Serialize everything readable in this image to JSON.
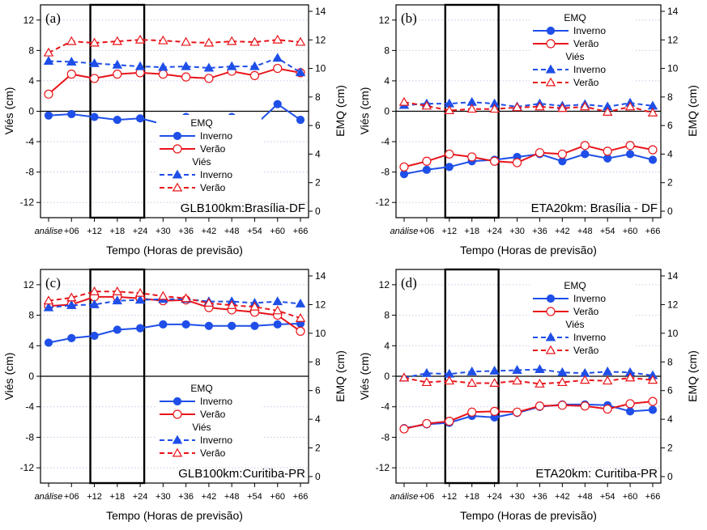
{
  "colors": {
    "inverno": "#1f4fe8",
    "verao": "#e8141a",
    "axis": "#000000",
    "grid": "#c8c8e6"
  },
  "x_tick_labels": [
    "análise",
    "+06",
    "+12",
    "+18",
    "+24",
    "+30",
    "+36",
    "+42",
    "+48",
    "+54",
    "+60",
    "+66"
  ],
  "legend": {
    "emq_header": "EMQ",
    "vies_header": "Viés",
    "inverno": "Inverno",
    "verao": "Verão"
  },
  "chart_data": [
    {
      "type": "line",
      "panel_label": "(a)",
      "title": "GLB100km:Brasília-DF",
      "xlabel": "Tempo (Horas de previsão)",
      "ylabel_left": "Viés (cm)",
      "ylabel_right": "EMQ (cm)",
      "categories": [
        "análise",
        "+06",
        "+12",
        "+18",
        "+24",
        "+30",
        "+36",
        "+42",
        "+48",
        "+54",
        "+60",
        "+66"
      ],
      "ylim_left": [
        -14,
        14
      ],
      "yticks_left": [
        -12,
        -8,
        -4,
        0,
        4,
        8,
        12
      ],
      "ylim_right": [
        0,
        14
      ],
      "yticks_right": [
        0,
        2,
        4,
        6,
        8,
        10,
        12,
        14
      ],
      "highlight_box": {
        "x_from": "+12",
        "x_to": "+24"
      },
      "legend_position": "bottom-right",
      "series": [
        {
          "name": "Inverno",
          "group": "EMQ",
          "axis": "right",
          "style": "solid-circle",
          "color": "#1f4fe8",
          "values": [
            6.7,
            6.8,
            6.6,
            6.4,
            6.5,
            6.1,
            6.6,
            6.0,
            6.6,
            6.0,
            7.5,
            6.4
          ]
        },
        {
          "name": "Verão",
          "group": "EMQ",
          "axis": "right",
          "style": "solid-open-circle",
          "color": "#e8141a",
          "values": [
            8.2,
            9.6,
            9.3,
            9.6,
            9.7,
            9.6,
            9.4,
            9.3,
            9.8,
            9.5,
            10.0,
            9.7
          ]
        },
        {
          "name": "Inverno",
          "group": "Viés",
          "axis": "left",
          "style": "dashed-triangle",
          "color": "#1f4fe8",
          "values": [
            6.6,
            6.5,
            6.3,
            6.1,
            5.9,
            5.8,
            5.9,
            5.7,
            5.9,
            5.9,
            7.0,
            5.1
          ]
        },
        {
          "name": "Verão",
          "group": "Viés",
          "axis": "left",
          "style": "dashed-open-triangle",
          "color": "#e8141a",
          "values": [
            7.7,
            9.2,
            9.0,
            9.2,
            9.4,
            9.3,
            9.1,
            9.0,
            9.2,
            9.1,
            9.4,
            9.1
          ]
        }
      ]
    },
    {
      "type": "line",
      "panel_label": "(b)",
      "title": "ETA20km: Brasília - DF",
      "xlabel": "Tempo (Horas de previsão)",
      "ylabel_left": "Viés (cm)",
      "ylabel_right": "EMQ (cm)",
      "categories": [
        "análise",
        "+06",
        "+12",
        "+18",
        "+24",
        "+30",
        "+36",
        "+42",
        "+48",
        "+54",
        "+60",
        "+66"
      ],
      "ylim_left": [
        -14,
        14
      ],
      "yticks_left": [
        -12,
        -8,
        -4,
        0,
        4,
        8,
        12
      ],
      "ylim_right": [
        0,
        14
      ],
      "yticks_right": [
        0,
        2,
        4,
        6,
        8,
        10,
        12,
        14
      ],
      "highlight_box": {
        "x_from": "+12",
        "x_to": "+24"
      },
      "legend_position": "top-right",
      "series": [
        {
          "name": "Inverno",
          "group": "EMQ",
          "axis": "right",
          "style": "solid-circle",
          "color": "#1f4fe8",
          "values": [
            2.6,
            2.9,
            3.1,
            3.5,
            3.6,
            3.8,
            4.0,
            3.5,
            4.0,
            3.7,
            4.0,
            3.6
          ]
        },
        {
          "name": "Verão",
          "group": "EMQ",
          "axis": "right",
          "style": "solid-open-circle",
          "color": "#e8141a",
          "values": [
            3.1,
            3.5,
            4.0,
            3.8,
            3.5,
            3.4,
            4.1,
            4.0,
            4.6,
            4.2,
            4.6,
            4.3
          ]
        },
        {
          "name": "Inverno",
          "group": "Viés",
          "axis": "left",
          "style": "dashed-triangle",
          "color": "#1f4fe8",
          "values": [
            0.8,
            1.0,
            1.0,
            1.2,
            1.0,
            0.6,
            1.0,
            0.7,
            0.9,
            0.6,
            1.1,
            0.7
          ]
        },
        {
          "name": "Verão",
          "group": "Viés",
          "axis": "left",
          "style": "dashed-open-triangle",
          "color": "#e8141a",
          "values": [
            1.2,
            0.7,
            0.1,
            0.3,
            0.3,
            0.5,
            0.6,
            0.4,
            0.6,
            -0.1,
            0.6,
            -0.2
          ]
        }
      ]
    },
    {
      "type": "line",
      "panel_label": "(c)",
      "title": "GLB100km:Curitiba-PR",
      "xlabel": "Tempo (Horas de previsão)",
      "ylabel_left": "Viés (cm)",
      "ylabel_right": "EMQ (cm)",
      "categories": [
        "análise",
        "+06",
        "+12",
        "+18",
        "+24",
        "+30",
        "+36",
        "+42",
        "+48",
        "+54",
        "+60",
        "+66"
      ],
      "ylim_left": [
        -14,
        14
      ],
      "yticks_left": [
        -12,
        -8,
        -4,
        0,
        4,
        8,
        12
      ],
      "ylim_right": [
        0,
        14
      ],
      "yticks_right": [
        0,
        2,
        4,
        6,
        8,
        10,
        12,
        14
      ],
      "highlight_box": {
        "x_from": "+12",
        "x_to": "+24"
      },
      "legend_position": "bottom-right",
      "series": [
        {
          "name": "Inverno",
          "group": "EMQ",
          "axis": "left",
          "style": "solid-circle",
          "color": "#1f4fe8",
          "values": [
            4.4,
            5.0,
            5.3,
            6.1,
            6.3,
            6.8,
            6.8,
            6.6,
            6.6,
            6.6,
            6.8,
            6.9
          ]
        },
        {
          "name": "Verão",
          "group": "EMQ",
          "axis": "left",
          "style": "solid-open-circle",
          "color": "#e8141a",
          "values": [
            9.2,
            9.4,
            10.4,
            10.4,
            10.2,
            9.9,
            10.0,
            9.0,
            8.7,
            8.4,
            8.0,
            5.9
          ]
        },
        {
          "name": "Inverno",
          "group": "Viés",
          "axis": "left",
          "style": "dashed-triangle",
          "color": "#1f4fe8",
          "values": [
            9.0,
            9.3,
            9.4,
            9.9,
            10.0,
            10.1,
            10.1,
            9.8,
            9.8,
            9.6,
            9.8,
            9.5
          ]
        },
        {
          "name": "Verão",
          "group": "Viés",
          "axis": "left",
          "style": "dashed-open-triangle",
          "color": "#e8141a",
          "values": [
            9.9,
            10.3,
            11.1,
            11.1,
            10.9,
            10.5,
            10.2,
            9.6,
            9.3,
            9.1,
            8.6,
            7.6
          ]
        }
      ]
    },
    {
      "type": "line",
      "panel_label": "(d)",
      "title": "ETA20km: Curitiba-PR",
      "xlabel": "Tempo (Horas de previsão)",
      "ylabel_left": "Viés (cm)",
      "ylabel_right": "EMQ (cm)",
      "categories": [
        "análise",
        "+06",
        "+12",
        "+18",
        "+24",
        "+30",
        "+36",
        "+42",
        "+48",
        "+54",
        "+60",
        "+66"
      ],
      "ylim_left": [
        -14,
        14
      ],
      "yticks_left": [
        -12,
        -8,
        -4,
        0,
        4,
        8,
        12
      ],
      "ylim_right": [
        0,
        14
      ],
      "yticks_right": [
        0,
        2,
        4,
        6,
        8,
        10,
        12,
        14
      ],
      "highlight_box": {
        "x_from": "+12",
        "x_to": "+24"
      },
      "legend_position": "top-right",
      "series": [
        {
          "name": "Inverno",
          "group": "EMQ",
          "axis": "left",
          "style": "solid-circle",
          "color": "#1f4fe8",
          "values": [
            -6.8,
            -6.3,
            -6.1,
            -5.2,
            -5.4,
            -4.8,
            -4.0,
            -3.7,
            -3.7,
            -3.8,
            -4.6,
            -4.4
          ]
        },
        {
          "name": "Verão",
          "group": "EMQ",
          "axis": "left",
          "style": "solid-open-circle",
          "color": "#e8141a",
          "values": [
            -6.9,
            -6.2,
            -5.9,
            -4.7,
            -4.6,
            -4.7,
            -3.9,
            -3.8,
            -3.9,
            -4.3,
            -3.6,
            -3.3
          ]
        },
        {
          "name": "Inverno",
          "group": "Viés",
          "axis": "left",
          "style": "dashed-triangle",
          "color": "#1f4fe8",
          "values": [
            -0.2,
            0.4,
            0.3,
            0.6,
            0.7,
            0.8,
            0.9,
            0.5,
            0.4,
            0.6,
            0.5,
            0.1
          ]
        },
        {
          "name": "Verão",
          "group": "Viés",
          "axis": "left",
          "style": "dashed-open-triangle",
          "color": "#e8141a",
          "values": [
            -0.2,
            -0.8,
            -0.6,
            -0.9,
            -0.9,
            -0.6,
            -1.0,
            -0.8,
            -0.5,
            -0.6,
            -0.2,
            -0.5
          ]
        }
      ]
    }
  ]
}
